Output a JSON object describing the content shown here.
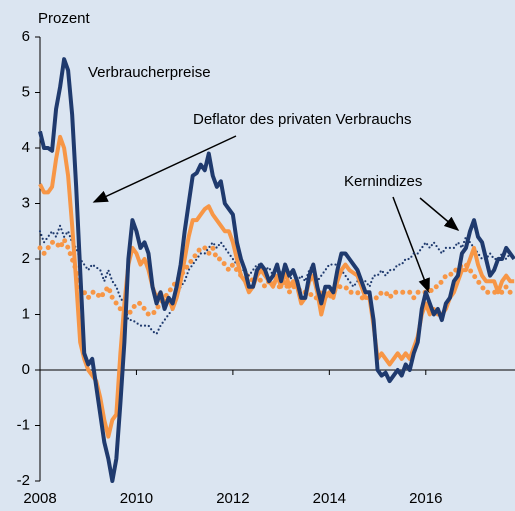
{
  "chart_data": {
    "type": "line",
    "y_label": "Prozent",
    "annotations": [
      "Verbraucherpreise",
      "Deflator des privaten Verbrauchs",
      "Kernindizes"
    ],
    "x": [
      2008,
      2008.083,
      2008.167,
      2008.25,
      2008.333,
      2008.417,
      2008.5,
      2008.583,
      2008.667,
      2008.75,
      2008.833,
      2008.917,
      2009,
      2009.083,
      2009.167,
      2009.25,
      2009.333,
      2009.417,
      2009.5,
      2009.583,
      2009.667,
      2009.75,
      2009.833,
      2009.917,
      2010,
      2010.083,
      2010.167,
      2010.25,
      2010.333,
      2010.417,
      2010.5,
      2010.583,
      2010.667,
      2010.75,
      2010.833,
      2010.917,
      2011,
      2011.083,
      2011.167,
      2011.25,
      2011.333,
      2011.417,
      2011.5,
      2011.583,
      2011.667,
      2011.75,
      2011.833,
      2011.917,
      2012,
      2012.083,
      2012.167,
      2012.25,
      2012.333,
      2012.417,
      2012.5,
      2012.583,
      2012.667,
      2012.75,
      2012.833,
      2012.917,
      2013,
      2013.083,
      2013.167,
      2013.25,
      2013.333,
      2013.417,
      2013.5,
      2013.583,
      2013.667,
      2013.75,
      2013.833,
      2013.917,
      2014,
      2014.083,
      2014.167,
      2014.25,
      2014.333,
      2014.417,
      2014.5,
      2014.583,
      2014.667,
      2014.75,
      2014.833,
      2014.917,
      2015,
      2015.083,
      2015.167,
      2015.25,
      2015.333,
      2015.417,
      2015.5,
      2015.583,
      2015.667,
      2015.75,
      2015.833,
      2015.917,
      2016,
      2016.083,
      2016.167,
      2016.25,
      2016.333,
      2016.417,
      2016.5,
      2016.583,
      2016.667,
      2016.75,
      2016.833,
      2016.917,
      2017,
      2017.083,
      2017.167,
      2017.25,
      2017.333,
      2017.417,
      2017.5,
      2017.583,
      2017.667,
      2017.75,
      2017.833
    ],
    "series": [
      {
        "name": "Verbraucherpreise",
        "color": "#1f3a6e",
        "dash": "solid",
        "values": [
          4.3,
          4.0,
          4.0,
          3.95,
          4.7,
          5.1,
          5.6,
          5.4,
          4.6,
          3.3,
          1.8,
          0.3,
          0.1,
          0.2,
          -0.3,
          -0.8,
          -1.3,
          -1.6,
          -2.0,
          -1.6,
          -0.6,
          0.5,
          2.0,
          2.7,
          2.5,
          2.2,
          2.3,
          2.1,
          1.5,
          1.2,
          1.4,
          1.1,
          1.3,
          1.2,
          1.5,
          1.9,
          2.5,
          3.0,
          3.5,
          3.55,
          3.7,
          3.6,
          3.9,
          3.5,
          3.3,
          3.4,
          3.0,
          2.9,
          2.8,
          2.3,
          2.0,
          1.8,
          1.5,
          1.5,
          1.8,
          1.9,
          1.8,
          1.6,
          1.7,
          1.9,
          1.6,
          1.9,
          1.7,
          1.8,
          1.6,
          1.3,
          1.3,
          1.7,
          1.9,
          1.5,
          1.2,
          1.5,
          1.5,
          1.4,
          1.8,
          2.1,
          2.1,
          2.0,
          1.9,
          1.8,
          1.6,
          1.4,
          1.4,
          0.9,
          0.0,
          -0.1,
          -0.05,
          -0.2,
          -0.1,
          0.0,
          -0.1,
          0.1,
          0.0,
          0.3,
          0.5,
          1.1,
          1.4,
          1.2,
          1.0,
          1.1,
          0.9,
          1.2,
          1.3,
          1.6,
          1.7,
          2.1,
          2.2,
          2.5,
          2.7,
          2.4,
          2.3,
          2.0,
          1.7,
          1.8,
          2.0,
          2.0,
          2.2,
          2.1,
          2.0
        ]
      },
      {
        "name": "Deflator des privaten Verbrauchs",
        "color": "#f79646",
        "dash": "solid",
        "values": [
          3.35,
          3.2,
          3.2,
          3.3,
          3.8,
          4.2,
          4.0,
          3.5,
          2.6,
          1.6,
          0.5,
          0.2,
          0.0,
          -0.1,
          -0.2,
          -0.5,
          -0.9,
          -1.2,
          -0.9,
          -0.8,
          0.3,
          1.2,
          1.9,
          2.2,
          2.1,
          1.9,
          2.0,
          1.8,
          1.5,
          1.3,
          1.4,
          1.2,
          1.3,
          1.1,
          1.3,
          1.6,
          2.0,
          2.4,
          2.7,
          2.7,
          2.8,
          2.9,
          2.95,
          2.8,
          2.7,
          2.6,
          2.5,
          2.5,
          2.3,
          2.0,
          1.7,
          1.6,
          1.4,
          1.5,
          1.7,
          1.8,
          1.7,
          1.6,
          1.5,
          1.7,
          1.5,
          1.8,
          1.5,
          1.6,
          1.5,
          1.2,
          1.3,
          1.6,
          1.7,
          1.4,
          1.0,
          1.3,
          1.4,
          1.3,
          1.6,
          1.8,
          1.9,
          1.8,
          1.75,
          1.7,
          1.5,
          1.3,
          1.3,
          0.8,
          0.2,
          0.3,
          0.2,
          0.1,
          0.2,
          0.3,
          0.2,
          0.3,
          0.2,
          0.4,
          0.6,
          1.0,
          1.2,
          1.0,
          1.1,
          1.0,
          1.0,
          1.1,
          1.3,
          1.4,
          1.6,
          1.8,
          1.8,
          2.0,
          2.2,
          1.9,
          1.7,
          1.6,
          1.6,
          1.6,
          1.4,
          1.6,
          1.7,
          1.6,
          1.6
        ]
      },
      {
        "color": "#1f3a6e",
        "dash": "dotted",
        "values": [
          2.5,
          2.3,
          2.4,
          2.5,
          2.4,
          2.6,
          2.4,
          2.5,
          2.3,
          2.2,
          2.0,
          1.9,
          1.8,
          1.9,
          1.85,
          1.8,
          1.6,
          1.8,
          1.6,
          1.5,
          1.3,
          1.2,
          0.9,
          0.9,
          0.85,
          0.8,
          0.8,
          0.8,
          0.7,
          0.65,
          0.8,
          0.9,
          1.0,
          1.1,
          1.3,
          1.5,
          1.6,
          1.8,
          1.9,
          2.0,
          2.1,
          2.1,
          2.2,
          2.3,
          2.2,
          2.3,
          2.2,
          2.1,
          2.0,
          1.9,
          1.8,
          1.8,
          1.7,
          1.8,
          1.9,
          1.9,
          1.8,
          1.85,
          1.7,
          1.7,
          1.8,
          1.7,
          1.7,
          1.6,
          1.6,
          1.7,
          1.6,
          1.8,
          1.9,
          1.6,
          1.7,
          1.8,
          1.9,
          1.9,
          1.9,
          1.8,
          1.7,
          1.6,
          1.5,
          1.6,
          1.6,
          1.6,
          1.5,
          1.7,
          1.7,
          1.8,
          1.7,
          1.8,
          1.8,
          1.9,
          1.9,
          2.0,
          2.0,
          2.1,
          2.1,
          2.2,
          2.3,
          2.2,
          2.3,
          2.2,
          2.1,
          2.2,
          2.2,
          2.2,
          2.3,
          2.2,
          2.4,
          2.3,
          2.2,
          2.1,
          2.0,
          2.0,
          2.1,
          2.0,
          2.0,
          2.1,
          2.0,
          2.1,
          2.0
        ]
      },
      {
        "color": "#f79646",
        "dash": "dotted",
        "values": [
          2.2,
          2.1,
          2.2,
          2.3,
          2.3,
          2.2,
          2.35,
          2.2,
          2.0,
          1.8,
          1.5,
          1.4,
          1.3,
          1.4,
          1.4,
          1.3,
          1.4,
          1.5,
          1.3,
          1.2,
          1.1,
          1.0,
          1.0,
          1.1,
          1.2,
          1.2,
          1.1,
          1.0,
          1.0,
          1.1,
          1.2,
          1.3,
          1.4,
          1.5,
          1.6,
          1.7,
          1.8,
          1.9,
          2.0,
          2.1,
          2.2,
          2.2,
          2.1,
          2.2,
          2.0,
          2.0,
          1.9,
          1.8,
          1.9,
          1.8,
          1.7,
          1.7,
          1.7,
          1.6,
          1.7,
          1.6,
          1.5,
          1.6,
          1.6,
          1.5,
          1.5,
          1.6,
          1.4,
          1.5,
          1.5,
          1.4,
          1.4,
          1.4,
          1.3,
          1.3,
          1.4,
          1.4,
          1.3,
          1.4,
          1.5,
          1.5,
          1.5,
          1.4,
          1.4,
          1.4,
          1.3,
          1.3,
          1.3,
          1.3,
          1.3,
          1.4,
          1.4,
          1.3,
          1.4,
          1.4,
          1.4,
          1.4,
          1.4,
          1.3,
          1.4,
          1.4,
          1.4,
          1.4,
          1.5,
          1.5,
          1.6,
          1.7,
          1.7,
          1.8,
          1.8,
          1.9,
          1.9,
          1.8,
          1.7,
          1.6,
          1.5,
          1.4,
          1.4,
          1.4,
          1.4,
          1.4,
          1.5,
          1.4,
          1.4
        ]
      }
    ],
    "xlim": [
      2008,
      2017.85
    ],
    "xticks": [
      2008,
      2010,
      2012,
      2014,
      2016
    ],
    "ylim": [
      -2,
      6
    ],
    "yticks": [
      -2,
      -1,
      0,
      1,
      2,
      3,
      4,
      5,
      6
    ],
    "grid": false,
    "background": "#dbe5f1"
  }
}
